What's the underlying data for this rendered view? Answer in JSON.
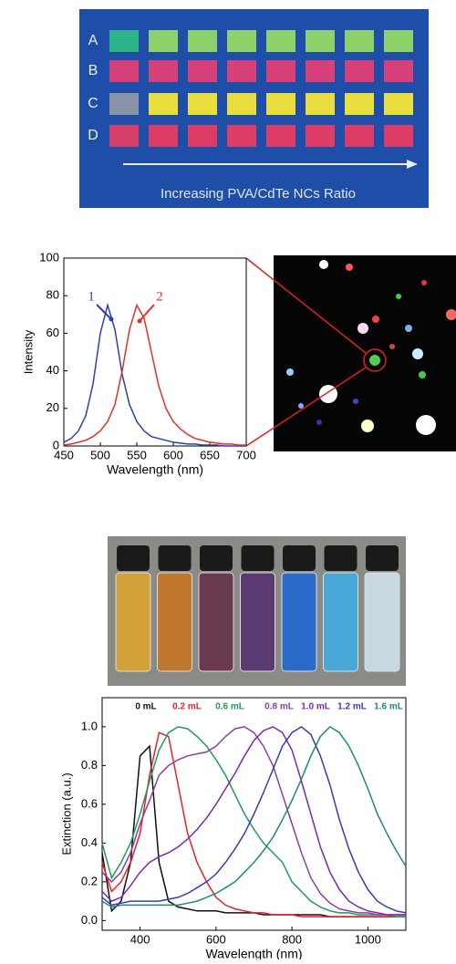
{
  "photos": {
    "panel_a": {
      "row_labels": [
        "A",
        "B",
        "C",
        "D"
      ],
      "caption": "Increasing PVA/CdTe NCs Ratio"
    }
  },
  "chart_data": [
    {
      "type": "line",
      "x_label": "Wavelength (nm)",
      "y_label": "Intensity",
      "x": [
        450,
        460,
        470,
        480,
        490,
        500,
        510,
        520,
        530,
        540,
        550,
        560,
        570,
        580,
        590,
        600,
        610,
        620,
        630,
        640,
        650,
        660,
        670,
        680,
        690,
        700
      ],
      "series": [
        {
          "name": "1",
          "color": "#2f3fb0",
          "values": [
            2,
            4,
            8,
            16,
            33,
            60,
            75,
            62,
            38,
            22,
            13,
            8,
            5,
            4,
            3,
            2,
            1.5,
            1,
            1,
            0.5,
            0.5,
            0.5,
            0,
            0,
            0,
            0
          ]
        },
        {
          "name": "2",
          "color": "#e0302a",
          "values": [
            0.5,
            1,
            2,
            3,
            5,
            8,
            13,
            22,
            40,
            62,
            75,
            68,
            50,
            32,
            20,
            13,
            9,
            6,
            4,
            3,
            2,
            1.5,
            1,
            1,
            0.5,
            0.5
          ]
        }
      ],
      "xlim": [
        450,
        700
      ],
      "xticks": [
        450,
        500,
        550,
        600,
        650,
        700
      ],
      "ylim": [
        0,
        100
      ],
      "yticks": [
        0,
        20,
        40,
        60,
        80,
        100
      ]
    },
    {
      "type": "line",
      "x_label": "Wavelength (nm)",
      "y_label": "Extinction (a.u.)",
      "x": [
        300,
        325,
        350,
        375,
        400,
        425,
        450,
        475,
        500,
        525,
        550,
        575,
        600,
        625,
        650,
        675,
        700,
        725,
        750,
        775,
        800,
        825,
        850,
        875,
        900,
        925,
        950,
        975,
        1000,
        1025,
        1050,
        1075,
        1100
      ],
      "series": [
        {
          "name": "0 mL",
          "color": "#111111",
          "values": [
            0.35,
            0.05,
            0.1,
            0.3,
            0.85,
            0.9,
            0.3,
            0.1,
            0.07,
            0.06,
            0.05,
            0.05,
            0.05,
            0.04,
            0.04,
            0.04,
            0.04,
            0.03,
            0.03,
            0.03,
            0.03,
            0.03,
            0.03,
            0.03,
            0.02,
            0.02,
            0.02,
            0.02,
            0.02,
            0.02,
            0.02,
            0.02,
            0.02
          ]
        },
        {
          "name": "0.2 mL",
          "color": "#e8202a",
          "values": [
            0.3,
            0.15,
            0.2,
            0.3,
            0.45,
            0.75,
            0.97,
            0.95,
            0.7,
            0.45,
            0.3,
            0.2,
            0.12,
            0.08,
            0.06,
            0.05,
            0.04,
            0.04,
            0.03,
            0.03,
            0.03,
            0.02,
            0.02,
            0.02,
            0.02,
            0.02,
            0.02,
            0.02,
            0.02,
            0.02,
            0.02,
            0.02,
            0.02
          ]
        },
        {
          "name": "0.6 mL",
          "color": "#1f9a5a",
          "values": [
            0.4,
            0.22,
            0.3,
            0.4,
            0.55,
            0.72,
            0.88,
            0.97,
            1.0,
            0.99,
            0.95,
            0.9,
            0.83,
            0.75,
            0.65,
            0.55,
            0.47,
            0.4,
            0.35,
            0.3,
            0.2,
            0.15,
            0.1,
            0.07,
            0.05,
            0.04,
            0.04,
            0.03,
            0.03,
            0.03,
            0.03,
            0.02,
            0.02
          ]
        },
        {
          "name": "0.8 mL",
          "color": "#8a3fa0",
          "values": [
            0.25,
            0.2,
            0.25,
            0.35,
            0.5,
            0.62,
            0.75,
            0.8,
            0.83,
            0.85,
            0.86,
            0.87,
            0.9,
            0.95,
            0.99,
            1.0,
            0.97,
            0.9,
            0.8,
            0.65,
            0.5,
            0.35,
            0.22,
            0.14,
            0.09,
            0.06,
            0.05,
            0.04,
            0.04,
            0.03,
            0.03,
            0.03,
            0.03
          ]
        },
        {
          "name": "1.0 mL",
          "color": "#7a2aa8",
          "values": [
            0.15,
            0.1,
            0.12,
            0.18,
            0.25,
            0.3,
            0.33,
            0.35,
            0.38,
            0.42,
            0.47,
            0.53,
            0.6,
            0.68,
            0.76,
            0.85,
            0.93,
            0.98,
            1.0,
            0.97,
            0.88,
            0.72,
            0.55,
            0.38,
            0.25,
            0.16,
            0.1,
            0.07,
            0.05,
            0.04,
            0.03,
            0.03,
            0.03
          ]
        },
        {
          "name": "1.2 mL",
          "color": "#3a3ab8",
          "values": [
            0.12,
            0.08,
            0.09,
            0.1,
            0.1,
            0.1,
            0.1,
            0.11,
            0.12,
            0.14,
            0.17,
            0.2,
            0.24,
            0.3,
            0.37,
            0.45,
            0.55,
            0.66,
            0.78,
            0.9,
            0.97,
            1.0,
            0.96,
            0.85,
            0.7,
            0.52,
            0.37,
            0.25,
            0.16,
            0.1,
            0.07,
            0.05,
            0.04
          ]
        },
        {
          "name": "1.6 mL",
          "color": "#1a8a7a",
          "values": [
            0.1,
            0.07,
            0.08,
            0.08,
            0.08,
            0.08,
            0.08,
            0.08,
            0.08,
            0.09,
            0.1,
            0.12,
            0.14,
            0.17,
            0.2,
            0.25,
            0.3,
            0.36,
            0.43,
            0.52,
            0.62,
            0.73,
            0.85,
            0.95,
            1.0,
            0.97,
            0.9,
            0.8,
            0.68,
            0.55,
            0.45,
            0.36,
            0.28
          ]
        }
      ],
      "xlim": [
        300,
        1100
      ],
      "xticks": [
        400,
        600,
        800,
        1000
      ],
      "ylim": [
        -0.05,
        1.15
      ],
      "yticks": [
        {
          "value": 0,
          "label": "0.0"
        },
        0.2,
        0.4,
        0.6,
        0.8,
        {
          "value": 1,
          "label": "1.0"
        }
      ]
    }
  ]
}
